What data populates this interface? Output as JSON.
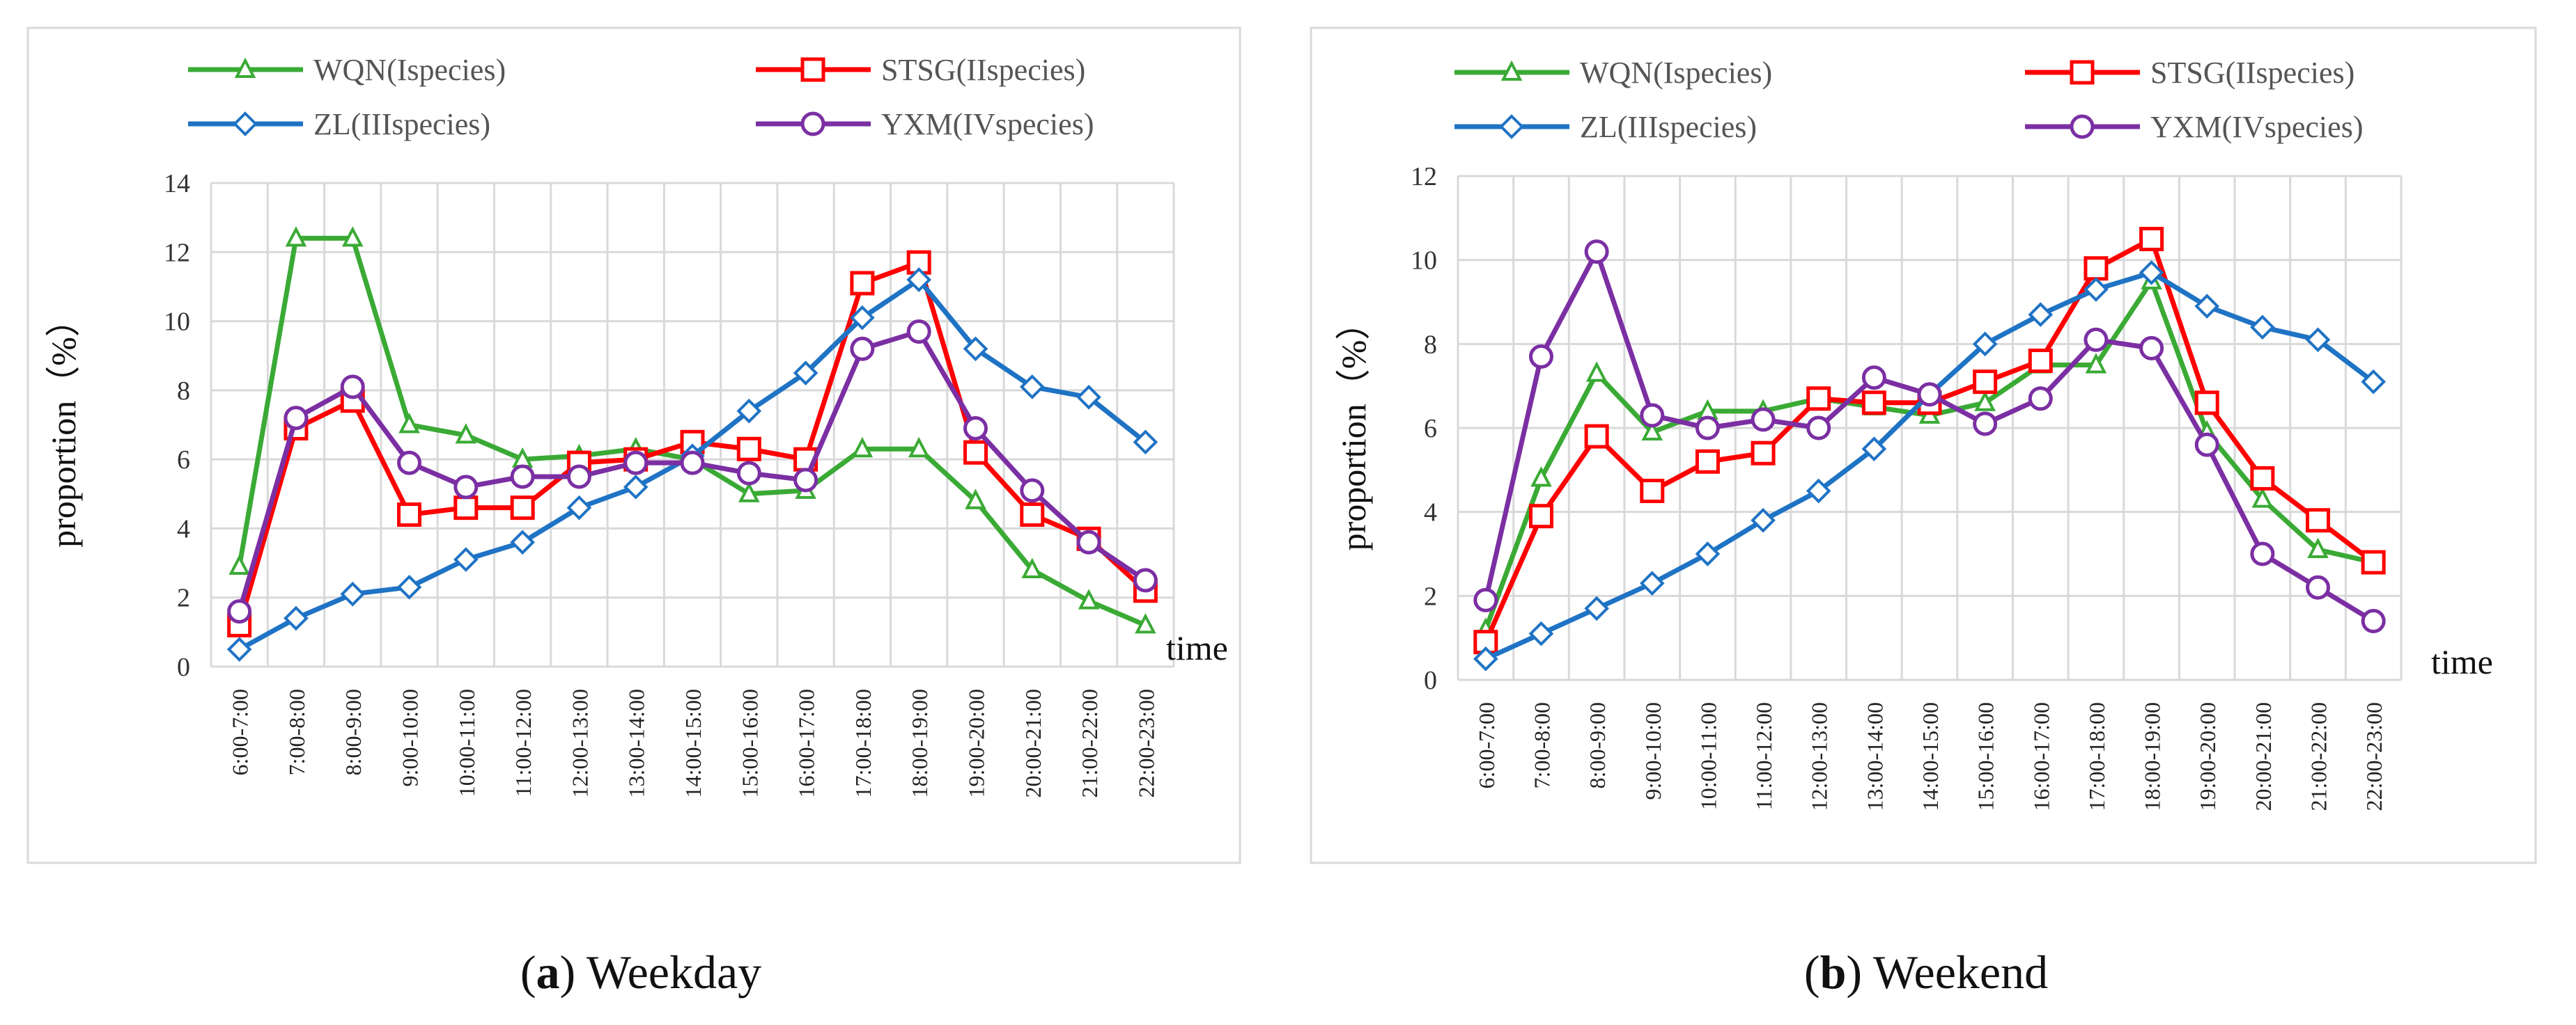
{
  "chart_data": [
    {
      "type": "line",
      "caption_letter": "a",
      "caption_text": "Weekday",
      "xlabel": "time",
      "ylabel": "proportion（%）",
      "ylim": [
        0,
        14
      ],
      "yticks": [
        0,
        2,
        4,
        6,
        8,
        10,
        12,
        14
      ],
      "grid": true,
      "legend_position": "top",
      "categories": [
        "6:00-7:00",
        "7:00-8:00",
        "8:00-9:00",
        "9:00-10:00",
        "10:00-11:00",
        "11:00-12:00",
        "12:00-13:00",
        "13:00-14:00",
        "14:00-15:00",
        "15:00-16:00",
        "16:00-17:00",
        "17:00-18:00",
        "18:00-19:00",
        "19:00-20:00",
        "20:00-21:00",
        "21:00-22:00",
        "22:00-23:00"
      ],
      "series": [
        {
          "name": "WQN(Ispecies)",
          "color": "#3aaa35",
          "marker": "triangle",
          "values": [
            2.9,
            12.4,
            12.4,
            7.0,
            6.7,
            6.0,
            6.1,
            6.3,
            6.0,
            5.0,
            5.1,
            6.3,
            6.3,
            4.8,
            2.8,
            1.9,
            1.2
          ]
        },
        {
          "name": "STSG(IIspecies)",
          "color": "#ff0000",
          "marker": "square",
          "values": [
            1.2,
            6.9,
            7.7,
            4.4,
            4.6,
            4.6,
            5.9,
            6.0,
            6.5,
            6.3,
            6.0,
            11.1,
            11.7,
            6.2,
            4.4,
            3.7,
            2.2
          ]
        },
        {
          "name": "ZL(IIIspecies)",
          "color": "#1f73c4",
          "marker": "diamond",
          "values": [
            0.5,
            1.4,
            2.1,
            2.3,
            3.1,
            3.6,
            4.6,
            5.2,
            6.1,
            7.4,
            8.5,
            10.1,
            11.2,
            9.2,
            8.1,
            7.8,
            6.5
          ]
        },
        {
          "name": "YXM(IVspecies)",
          "color": "#7b2fa3",
          "marker": "circle",
          "values": [
            1.6,
            7.2,
            8.1,
            5.9,
            5.2,
            5.5,
            5.5,
            5.9,
            5.9,
            5.6,
            5.4,
            9.2,
            9.7,
            6.9,
            5.1,
            3.6,
            2.5
          ]
        }
      ]
    },
    {
      "type": "line",
      "caption_letter": "b",
      "caption_text": "Weekend",
      "xlabel": "time",
      "ylabel": "proportion（%）",
      "ylim": [
        0,
        12
      ],
      "yticks": [
        0,
        2,
        4,
        6,
        8,
        10,
        12
      ],
      "grid": true,
      "legend_position": "top",
      "categories": [
        "6:00-7:00",
        "7:00-8:00",
        "8:00-9:00",
        "9:00-10:00",
        "10:00-11:00",
        "11:00-12:00",
        "12:00-13:00",
        "13:00-14:00",
        "14:00-15:00",
        "15:00-16:00",
        "16:00-17:00",
        "17:00-18:00",
        "18:00-19:00",
        "19:00-20:00",
        "20:00-21:00",
        "21:00-22:00",
        "22:00-23:00"
      ],
      "series": [
        {
          "name": "WQN(Ispecies)",
          "color": "#3aaa35",
          "marker": "triangle",
          "values": [
            1.2,
            4.8,
            7.3,
            5.9,
            6.4,
            6.4,
            6.7,
            6.5,
            6.3,
            6.6,
            7.5,
            7.5,
            9.5,
            5.9,
            4.3,
            3.1,
            2.8
          ]
        },
        {
          "name": "STSG(IIspecies)",
          "color": "#ff0000",
          "marker": "square",
          "values": [
            0.9,
            3.9,
            5.8,
            4.5,
            5.2,
            5.4,
            6.7,
            6.6,
            6.6,
            7.1,
            7.6,
            9.8,
            10.5,
            6.6,
            4.8,
            3.8,
            2.8
          ]
        },
        {
          "name": "ZL(IIIspecies)",
          "color": "#1f73c4",
          "marker": "diamond",
          "values": [
            0.5,
            1.1,
            1.7,
            2.3,
            3.0,
            3.8,
            4.5,
            5.5,
            6.8,
            8.0,
            8.7,
            9.3,
            9.7,
            8.9,
            8.4,
            8.1,
            7.1
          ]
        },
        {
          "name": "YXM(IVspecies)",
          "color": "#7b2fa3",
          "marker": "circle",
          "values": [
            1.9,
            7.7,
            10.2,
            6.3,
            6.0,
            6.2,
            6.0,
            7.2,
            6.8,
            6.1,
            6.7,
            8.1,
            7.9,
            5.6,
            3.0,
            2.2,
            1.4
          ]
        }
      ]
    }
  ]
}
